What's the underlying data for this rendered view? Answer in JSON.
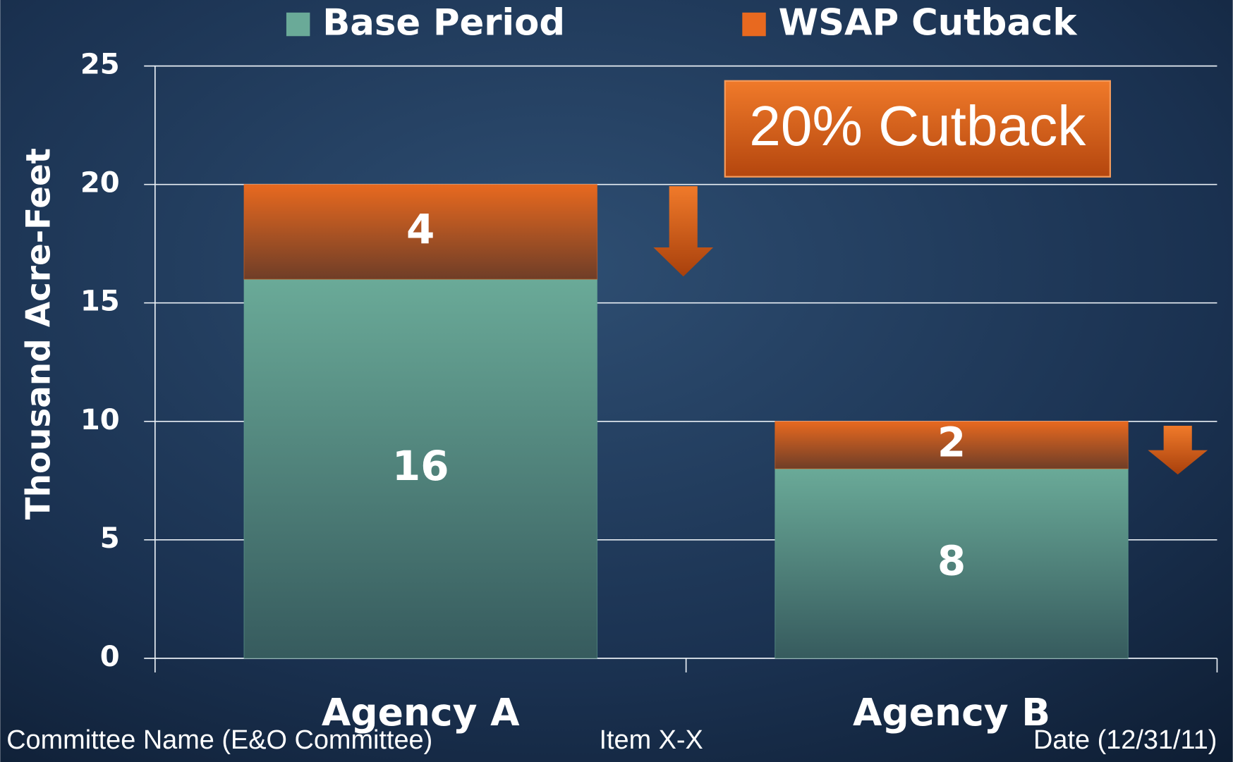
{
  "chart_data": {
    "type": "stacked_bar",
    "categories": [
      "Agency A",
      "Agency B"
    ],
    "series": [
      {
        "name": "Base Period",
        "color": "#6aaa98",
        "values": [
          16,
          8
        ]
      },
      {
        "name": "WSAP Cutback",
        "color": "#e8691f",
        "values": [
          4,
          2
        ]
      }
    ],
    "y_axis_label": "Thousand Acre-Feet",
    "ylim": [
      0,
      25
    ],
    "yticks": [
      0,
      5,
      10,
      15,
      20,
      25
    ],
    "grid": true,
    "legend": "top",
    "annotation": "20% Cutback"
  },
  "footer": {
    "left": "Committee Name (E&O Committee)",
    "center": "Item X-X",
    "right": "Date (12/31/11)"
  }
}
